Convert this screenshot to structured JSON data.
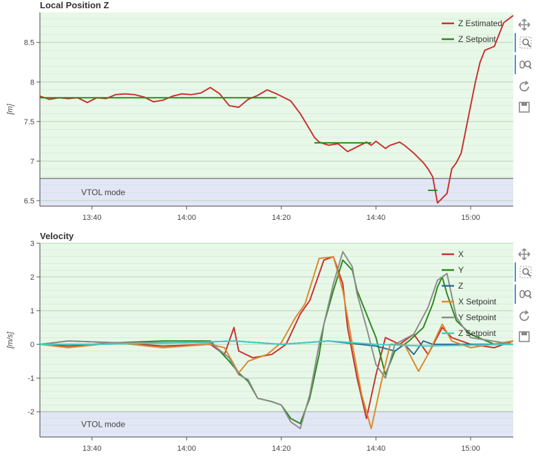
{
  "chart_data": [
    {
      "type": "line",
      "title": "Local Position Z",
      "ylabel": "[m]",
      "xlabel": "",
      "ylim": [
        6.43,
        8.88
      ],
      "xlim": [
        "13:29",
        "15:09"
      ],
      "x_ticks": [
        "13:40",
        "14:00",
        "14:20",
        "14:40",
        "15:00"
      ],
      "y_ticks": [
        "6.5",
        "7",
        "7.5",
        "8",
        "8.5"
      ],
      "grid": true,
      "legend": "top-right",
      "background_color": "#e8f8e8",
      "shaded_region": {
        "label": "VTOL mode",
        "y_from": 6.43,
        "y_to": 6.78,
        "color": "#e2e6f6"
      },
      "series": [
        {
          "name": "Z Estimated",
          "color": "#c8312f",
          "points": [
            [
              "13:29",
              7.82
            ],
            [
              "13:31",
              7.78
            ],
            [
              "13:33",
              7.8
            ],
            [
              "13:35",
              7.79
            ],
            [
              "13:37",
              7.8
            ],
            [
              "13:39",
              7.74
            ],
            [
              "13:41",
              7.8
            ],
            [
              "13:43",
              7.79
            ],
            [
              "13:45",
              7.84
            ],
            [
              "13:47",
              7.85
            ],
            [
              "13:49",
              7.84
            ],
            [
              "13:51",
              7.81
            ],
            [
              "13:53",
              7.75
            ],
            [
              "13:55",
              7.77
            ],
            [
              "13:57",
              7.82
            ],
            [
              "13:59",
              7.85
            ],
            [
              "14:01",
              7.84
            ],
            [
              "14:03",
              7.86
            ],
            [
              "14:05",
              7.93
            ],
            [
              "14:07",
              7.85
            ],
            [
              "14:09",
              7.7
            ],
            [
              "14:11",
              7.68
            ],
            [
              "14:13",
              7.78
            ],
            [
              "14:15",
              7.83
            ],
            [
              "14:17",
              7.9
            ],
            [
              "14:19",
              7.85
            ],
            [
              "14:20",
              7.82
            ],
            [
              "14:22",
              7.76
            ],
            [
              "14:24",
              7.6
            ],
            [
              "14:26",
              7.4
            ],
            [
              "14:27",
              7.3
            ],
            [
              "14:28",
              7.24
            ],
            [
              "14:30",
              7.2
            ],
            [
              "14:32",
              7.22
            ],
            [
              "14:34",
              7.12
            ],
            [
              "14:36",
              7.18
            ],
            [
              "14:38",
              7.24
            ],
            [
              "14:39",
              7.2
            ],
            [
              "14:40",
              7.25
            ],
            [
              "14:42",
              7.16
            ],
            [
              "14:43",
              7.2
            ],
            [
              "14:45",
              7.24
            ],
            [
              "14:46",
              7.2
            ],
            [
              "14:48",
              7.1
            ],
            [
              "14:50",
              6.98
            ],
            [
              "14:51",
              6.9
            ],
            [
              "14:52",
              6.8
            ],
            [
              "14:52.5",
              6.63
            ],
            [
              "14:53",
              6.47
            ],
            [
              "14:55",
              6.59
            ],
            [
              "14:56",
              6.9
            ],
            [
              "14:57",
              6.98
            ],
            [
              "14:58",
              7.1
            ],
            [
              "14:59",
              7.4
            ],
            [
              "15:00",
              7.7
            ],
            [
              "15:01",
              8.0
            ],
            [
              "15:02",
              8.25
            ],
            [
              "15:03",
              8.4
            ],
            [
              "15:05",
              8.45
            ],
            [
              "15:07",
              8.75
            ],
            [
              "15:09",
              8.84
            ]
          ]
        },
        {
          "name": "Z Setpoint",
          "color": "#2a8a1c",
          "segments": [
            [
              [
                "13:29",
                7.8
              ],
              [
                "14:19",
                7.8
              ]
            ],
            [
              [
                "14:27",
                7.23
              ],
              [
                "14:39",
                7.23
              ]
            ],
            [
              [
                "14:51",
                6.63
              ],
              [
                "14:53",
                6.63
              ]
            ]
          ]
        }
      ]
    },
    {
      "type": "line",
      "title": "Velocity",
      "ylabel": "[m/s]",
      "xlabel": "",
      "ylim": [
        -2.75,
        3.0
      ],
      "xlim": [
        "13:29",
        "15:09"
      ],
      "x_ticks": [
        "13:40",
        "14:00",
        "14:20",
        "14:40",
        "15:00"
      ],
      "y_ticks": [
        "-2",
        "-1",
        "0",
        "1",
        "2",
        "3"
      ],
      "grid": true,
      "legend": "top-right",
      "background_color": "#e8f8e8",
      "shaded_region": {
        "label": "VTOL mode",
        "y_from": -2.75,
        "y_to": -2.0,
        "color": "#e2e6f6"
      },
      "series": [
        {
          "name": "X",
          "color": "#c8312f",
          "points": [
            [
              "13:29",
              0.0
            ],
            [
              "13:35",
              -0.05
            ],
            [
              "13:45",
              0.05
            ],
            [
              "13:55",
              -0.05
            ],
            [
              "14:05",
              0.0
            ],
            [
              "14:08",
              -0.3
            ],
            [
              "14:10",
              0.5
            ],
            [
              "14:11",
              -0.2
            ],
            [
              "14:14",
              -0.4
            ],
            [
              "14:18",
              -0.3
            ],
            [
              "14:21",
              0.0
            ],
            [
              "14:24",
              0.9
            ],
            [
              "14:26",
              1.3
            ],
            [
              "14:29",
              2.5
            ],
            [
              "14:31",
              2.6
            ],
            [
              "14:33",
              1.8
            ],
            [
              "14:34",
              0.5
            ],
            [
              "14:36",
              -1.0
            ],
            [
              "14:38",
              -2.2
            ],
            [
              "14:40",
              -0.9
            ],
            [
              "14:42",
              0.2
            ],
            [
              "14:45",
              0.0
            ],
            [
              "14:48",
              0.3
            ],
            [
              "14:51",
              -0.3
            ],
            [
              "14:54",
              0.5
            ],
            [
              "14:56",
              0.2
            ],
            [
              "15:00",
              0.0
            ],
            [
              "15:05",
              -0.1
            ],
            [
              "15:09",
              0.1
            ]
          ]
        },
        {
          "name": "Y",
          "color": "#2a8a1c",
          "points": [
            [
              "13:29",
              0.0
            ],
            [
              "13:35",
              0.1
            ],
            [
              "13:45",
              0.05
            ],
            [
              "13:55",
              0.1
            ],
            [
              "14:05",
              0.1
            ],
            [
              "14:09",
              -0.5
            ],
            [
              "14:11",
              -0.85
            ],
            [
              "14:13",
              -1.1
            ],
            [
              "14:15",
              -1.6
            ],
            [
              "14:18",
              -1.7
            ],
            [
              "14:20",
              -1.8
            ],
            [
              "14:22",
              -2.2
            ],
            [
              "14:24",
              -2.35
            ],
            [
              "14:26",
              -1.6
            ],
            [
              "14:28",
              -0.3
            ],
            [
              "14:29",
              0.6
            ],
            [
              "14:31",
              1.6
            ],
            [
              "14:33",
              2.5
            ],
            [
              "14:35",
              2.2
            ],
            [
              "14:36",
              1.6
            ],
            [
              "14:38",
              0.9
            ],
            [
              "14:40",
              0.2
            ],
            [
              "14:42",
              -0.9
            ],
            [
              "14:44",
              -0.2
            ],
            [
              "14:47",
              0.1
            ],
            [
              "14:50",
              0.5
            ],
            [
              "14:52",
              1.2
            ],
            [
              "14:53",
              1.7
            ],
            [
              "14:54",
              2.0
            ],
            [
              "14:55",
              1.5
            ],
            [
              "14:57",
              0.7
            ],
            [
              "15:00",
              0.3
            ],
            [
              "15:05",
              0.0
            ],
            [
              "15:09",
              0.1
            ]
          ]
        },
        {
          "name": "Z",
          "color": "#2a6f97",
          "points": [
            [
              "13:29",
              0.0
            ],
            [
              "13:40",
              0.0
            ],
            [
              "14:00",
              0.05
            ],
            [
              "14:10",
              0.1
            ],
            [
              "14:20",
              0.0
            ],
            [
              "14:30",
              0.1
            ],
            [
              "14:40",
              -0.05
            ],
            [
              "14:44",
              -0.2
            ],
            [
              "14:46",
              0.0
            ],
            [
              "14:48",
              -0.3
            ],
            [
              "14:50",
              0.1
            ],
            [
              "14:52",
              0.0
            ],
            [
              "14:55",
              0.0
            ],
            [
              "15:09",
              0.0
            ]
          ]
        },
        {
          "name": "X Setpoint",
          "color": "#d98a2f",
          "points": [
            [
              "13:29",
              0.0
            ],
            [
              "13:35",
              -0.1
            ],
            [
              "13:45",
              0.05
            ],
            [
              "13:55",
              -0.1
            ],
            [
              "14:05",
              0.0
            ],
            [
              "14:08",
              -0.1
            ],
            [
              "14:11",
              -0.85
            ],
            [
              "14:13",
              -0.5
            ],
            [
              "14:17",
              -0.3
            ],
            [
              "14:20",
              0.05
            ],
            [
              "14:23",
              0.8
            ],
            [
              "14:25",
              1.2
            ],
            [
              "14:28",
              2.55
            ],
            [
              "14:31",
              2.6
            ],
            [
              "14:33",
              1.6
            ],
            [
              "14:35",
              0.0
            ],
            [
              "14:37",
              -1.5
            ],
            [
              "14:39",
              -2.5
            ],
            [
              "14:41",
              -1.2
            ],
            [
              "14:43",
              0.0
            ],
            [
              "14:46",
              0.0
            ],
            [
              "14:49",
              -0.8
            ],
            [
              "14:51",
              -0.3
            ],
            [
              "14:54",
              0.6
            ],
            [
              "14:56",
              0.1
            ],
            [
              "15:00",
              -0.1
            ],
            [
              "15:09",
              0.1
            ]
          ]
        },
        {
          "name": "Y Setpoint",
          "color": "#8c8c8c",
          "points": [
            [
              "13:29",
              0.0
            ],
            [
              "13:35",
              0.1
            ],
            [
              "13:45",
              0.05
            ],
            [
              "13:55",
              0.05
            ],
            [
              "14:05",
              0.05
            ],
            [
              "14:09",
              -0.4
            ],
            [
              "14:11",
              -0.9
            ],
            [
              "14:13",
              -1.05
            ],
            [
              "14:15",
              -1.6
            ],
            [
              "14:18",
              -1.7
            ],
            [
              "14:20",
              -1.8
            ],
            [
              "14:22",
              -2.3
            ],
            [
              "14:24",
              -2.5
            ],
            [
              "14:26",
              -1.5
            ],
            [
              "14:28",
              0.0
            ],
            [
              "14:31",
              1.8
            ],
            [
              "14:33",
              2.75
            ],
            [
              "14:35",
              2.3
            ],
            [
              "14:36",
              1.5
            ],
            [
              "14:38",
              0.5
            ],
            [
              "14:40",
              -0.6
            ],
            [
              "14:42",
              -1.0
            ],
            [
              "14:44",
              0.0
            ],
            [
              "14:48",
              0.3
            ],
            [
              "14:51",
              1.1
            ],
            [
              "14:53",
              1.9
            ],
            [
              "14:55",
              2.1
            ],
            [
              "14:57",
              0.8
            ],
            [
              "15:00",
              0.2
            ],
            [
              "15:09",
              0.0
            ]
          ]
        },
        {
          "name": "Z Setpoint",
          "color": "#3fcfc4",
          "points": [
            [
              "13:29",
              0.0
            ],
            [
              "13:40",
              0.0
            ],
            [
              "14:00",
              0.05
            ],
            [
              "14:10",
              0.1
            ],
            [
              "14:20",
              0.0
            ],
            [
              "14:30",
              0.1
            ],
            [
              "14:40",
              0.0
            ],
            [
              "14:50",
              -0.05
            ],
            [
              "15:09",
              0.0
            ]
          ]
        }
      ]
    }
  ],
  "toolbar": {
    "icons": [
      "pan-icon",
      "box-zoom-icon",
      "wheel-zoom-icon",
      "reset-icon",
      "save-icon"
    ]
  }
}
